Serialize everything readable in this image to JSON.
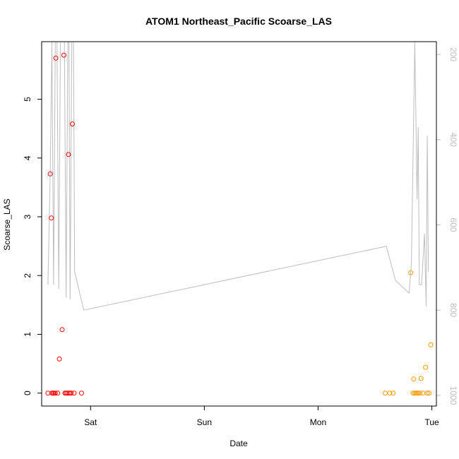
{
  "chart_data": {
    "type": "scatter",
    "title": "ATOM1 Northeast_Pacific Scoarse_LAS",
    "xlabel": "Date",
    "ylabel": "Scoarse_LAS",
    "x_ticks": [
      {
        "label": "Sat",
        "day": 1.0
      },
      {
        "label": "Sun",
        "day": 2.0
      },
      {
        "label": "Mon",
        "day": 3.0
      },
      {
        "label": "Tue",
        "day": 4.0
      }
    ],
    "xlim_days": [
      0.57,
      4.04
    ],
    "ylim": [
      -0.22,
      5.98
    ],
    "y_ticks": [
      0,
      1,
      2,
      3,
      4,
      5
    ],
    "y2_label": "",
    "y2_ticks": [
      200,
      400,
      600,
      800,
      1000
    ],
    "y2lim": [
      1025,
      170
    ],
    "colors": {
      "series1": "#ff0000",
      "series2": "#ff9900",
      "secondary_line": "#bdbdbd",
      "axis": "#000000"
    },
    "grid": false,
    "legend": "none",
    "series": [
      {
        "color_key": "series1",
        "points": [
          {
            "day": 0.625,
            "y": 0
          },
          {
            "day": 0.645,
            "y": 3.73
          },
          {
            "day": 0.655,
            "y": 2.98
          },
          {
            "day": 0.66,
            "y": 0
          },
          {
            "day": 0.67,
            "y": 0
          },
          {
            "day": 0.68,
            "y": 0
          },
          {
            "day": 0.69,
            "y": 0
          },
          {
            "day": 0.695,
            "y": 5.7
          },
          {
            "day": 0.71,
            "y": 0
          },
          {
            "day": 0.725,
            "y": 0.58
          },
          {
            "day": 0.75,
            "y": 1.08
          },
          {
            "day": 0.765,
            "y": 5.75
          },
          {
            "day": 0.775,
            "y": 0
          },
          {
            "day": 0.785,
            "y": 0
          },
          {
            "day": 0.795,
            "y": 0
          },
          {
            "day": 0.805,
            "y": 4.06
          },
          {
            "day": 0.81,
            "y": 0
          },
          {
            "day": 0.82,
            "y": 0
          },
          {
            "day": 0.83,
            "y": 0
          },
          {
            "day": 0.84,
            "y": 4.58
          },
          {
            "day": 0.855,
            "y": 0
          },
          {
            "day": 0.92,
            "y": 0
          }
        ]
      },
      {
        "color_key": "series2",
        "points": [
          {
            "day": 3.59,
            "y": 0
          },
          {
            "day": 3.63,
            "y": 0
          },
          {
            "day": 3.66,
            "y": 0
          },
          {
            "day": 3.815,
            "y": 2.05
          },
          {
            "day": 3.835,
            "y": 0
          },
          {
            "day": 3.84,
            "y": 0.24
          },
          {
            "day": 3.85,
            "y": 0
          },
          {
            "day": 3.86,
            "y": 0
          },
          {
            "day": 3.87,
            "y": 0
          },
          {
            "day": 3.88,
            "y": 0
          },
          {
            "day": 3.895,
            "y": 0
          },
          {
            "day": 3.905,
            "y": 0.25
          },
          {
            "day": 3.92,
            "y": 0
          },
          {
            "day": 3.945,
            "y": 0.44
          },
          {
            "day": 3.96,
            "y": 0
          },
          {
            "day": 3.975,
            "y": 0
          },
          {
            "day": 3.99,
            "y": 0.82
          }
        ]
      }
    ],
    "secondary_line": [
      {
        "day": 0.625,
        "y2": 740
      },
      {
        "day": 0.645,
        "y2": 480
      },
      {
        "day": 0.66,
        "y2": 170
      },
      {
        "day": 0.675,
        "y2": 740
      },
      {
        "day": 0.69,
        "y2": 170
      },
      {
        "day": 0.705,
        "y2": 170
      },
      {
        "day": 0.72,
        "y2": 750
      },
      {
        "day": 0.735,
        "y2": 170
      },
      {
        "day": 0.77,
        "y2": 170
      },
      {
        "day": 0.785,
        "y2": 770
      },
      {
        "day": 0.8,
        "y2": 170
      },
      {
        "day": 0.81,
        "y2": 170
      },
      {
        "day": 0.82,
        "y2": 775
      },
      {
        "day": 0.835,
        "y2": 170
      },
      {
        "day": 0.85,
        "y2": 170
      },
      {
        "day": 0.86,
        "y2": 710
      },
      {
        "day": 0.94,
        "y2": 800
      },
      {
        "day": 3.6,
        "y2": 650
      },
      {
        "day": 3.68,
        "y2": 730
      },
      {
        "day": 3.8,
        "y2": 760
      },
      {
        "day": 3.82,
        "y2": 690
      },
      {
        "day": 3.85,
        "y2": 170
      },
      {
        "day": 3.86,
        "y2": 350
      },
      {
        "day": 3.87,
        "y2": 540
      },
      {
        "day": 3.88,
        "y2": 370
      },
      {
        "day": 3.89,
        "y2": 740
      },
      {
        "day": 3.91,
        "y2": 740
      },
      {
        "day": 3.935,
        "y2": 620
      },
      {
        "day": 3.95,
        "y2": 790
      },
      {
        "day": 3.96,
        "y2": 390
      },
      {
        "day": 3.97,
        "y2": 710
      }
    ]
  }
}
